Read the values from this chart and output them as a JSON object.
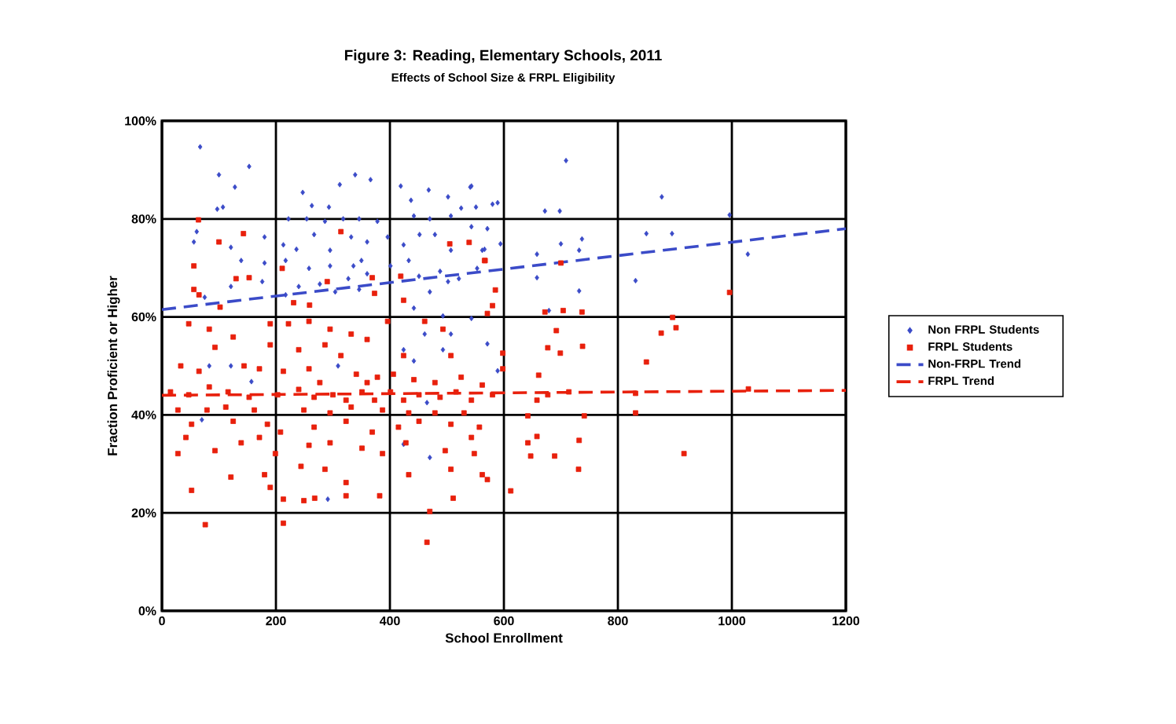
{
  "chart_data": {
    "type": "scatter",
    "title": "Figure 3: Reading, Elementary Schools, 2011",
    "subtitle": "Effects of School Size & FRPL Eligibility",
    "xlabel": "School Enrollment",
    "ylabel": "Fraction Proficient or Higher",
    "xlim": [
      0,
      1200
    ],
    "ylim": [
      0,
      100
    ],
    "xticks": [
      0,
      200,
      400,
      600,
      800,
      1000,
      1200
    ],
    "yticks": [
      {
        "value": 0,
        "label": "0%"
      },
      {
        "value": 20,
        "label": "20%"
      },
      {
        "value": 40,
        "label": "40%"
      },
      {
        "value": 60,
        "label": "60%"
      },
      {
        "value": 80,
        "label": "80%"
      },
      {
        "value": 100,
        "label": "100%"
      }
    ],
    "grid": true,
    "legend": "right",
    "series": [
      {
        "name": "Non FRPL Students",
        "marker": "diamond",
        "color": "#3b4bc8",
        "x": [
          67,
          100,
          128,
          153,
          97,
          107,
          247,
          263,
          293,
          312,
          339,
          366,
          419,
          437,
          468,
          502,
          541,
          525,
          551,
          580,
          222,
          254,
          286,
          318,
          346,
          378,
          442,
          470,
          507,
          543,
          571,
          61,
          56,
          121,
          180,
          213,
          236,
          267,
          295,
          332,
          360,
          396,
          424,
          452,
          479,
          507,
          562,
          139,
          180,
          217,
          258,
          295,
          336,
          350,
          360,
          327,
          401,
          433,
          451,
          488,
          521,
          553,
          176,
          240,
          277,
          304,
          346,
          470,
          502,
          75,
          121,
          217,
          442,
          493,
          543,
          461,
          507,
          424,
          493,
          83,
          121,
          157,
          309,
          442,
          465,
          70,
          424,
          470,
          291,
          543,
          589,
          709,
          672,
          698,
          877,
          996,
          566,
          594,
          700,
          737,
          850,
          895,
          658,
          732,
          1028,
          658,
          831,
          732,
          679,
          571,
          589
        ],
        "values": [
          94.7,
          89,
          86.5,
          90.7,
          82,
          82.4,
          85.4,
          82.7,
          82.4,
          87,
          89,
          88,
          86.7,
          83.8,
          85.9,
          84.5,
          86.5,
          82.2,
          82.4,
          83,
          80,
          80,
          79.5,
          80,
          80,
          79.5,
          80.6,
          80,
          80.6,
          78.4,
          78,
          77.4,
          75.3,
          74.2,
          76.3,
          74.7,
          73.8,
          76.8,
          73.6,
          76.3,
          75.3,
          76.3,
          74.7,
          76.8,
          76.8,
          73.6,
          73.6,
          71.5,
          71,
          71.5,
          69.9,
          70.4,
          70.4,
          71.5,
          68.8,
          67.8,
          70.4,
          71.5,
          68.3,
          69.3,
          67.8,
          69.9,
          67.2,
          66.2,
          66.7,
          65.1,
          65.6,
          65.1,
          67.2,
          64,
          66.2,
          64.5,
          61.8,
          60.2,
          59.7,
          56.5,
          56.5,
          53.3,
          53.3,
          50,
          50,
          46.8,
          50,
          51,
          42.5,
          39,
          34,
          31.3,
          22.8,
          86.7,
          83.3,
          91.9,
          81.6,
          81.6,
          84.5,
          80.8,
          73.8,
          74.9,
          74.9,
          75.9,
          77,
          77,
          72.8,
          73.6,
          72.8,
          68,
          67.4,
          65.3,
          61.3,
          54.5,
          49
        ]
      },
      {
        "name": "FRPL Students",
        "marker": "square",
        "color": "#e8200c",
        "x": [
          64,
          143,
          100,
          56,
          56,
          65,
          130,
          153,
          102,
          211,
          314,
          290,
          369,
          419,
          505,
          539,
          567,
          424,
          373,
          231,
          259,
          47,
          83,
          125,
          190,
          222,
          258,
          295,
          332,
          360,
          396,
          461,
          493,
          571,
          93,
          190,
          240,
          286,
          314,
          424,
          507,
          33,
          65,
          144,
          171,
          213,
          258,
          277,
          341,
          360,
          378,
          406,
          442,
          479,
          525,
          562,
          15,
          47,
          83,
          116,
          153,
          203,
          240,
          267,
          300,
          323,
          351,
          373,
          401,
          424,
          451,
          488,
          516,
          543,
          580,
          28,
          79,
          112,
          162,
          249,
          295,
          332,
          387,
          433,
          479,
          530,
          52,
          125,
          185,
          208,
          267,
          323,
          369,
          415,
          451,
          507,
          557,
          42,
          93,
          139,
          171,
          199,
          258,
          295,
          351,
          387,
          428,
          497,
          548,
          28,
          121,
          180,
          244,
          286,
          323,
          382,
          433,
          507,
          562,
          52,
          190,
          213,
          249,
          268,
          323,
          470,
          511,
          213,
          76,
          465,
          571,
          543,
          700,
          996,
          704,
          672,
          737,
          896,
          876,
          902,
          692,
          677,
          699,
          738,
          850,
          661,
          677,
          658,
          714,
          831,
          1029,
          642,
          741,
          831,
          658,
          642,
          732,
          689,
          647,
          731,
          916,
          612,
          598,
          598,
          580,
          585,
          566
        ],
        "values": [
          79.8,
          77,
          75.3,
          70.4,
          65.6,
          64.5,
          67.8,
          68,
          62,
          69.9,
          77.4,
          67.2,
          68,
          68.3,
          74.9,
          75.2,
          71.5,
          63.4,
          64.8,
          62.9,
          62.4,
          58.6,
          57.5,
          55.9,
          58.6,
          58.6,
          59.1,
          57.5,
          56.5,
          55.4,
          59.1,
          59.1,
          57.5,
          60.7,
          53.8,
          54.3,
          53.3,
          54.3,
          52.1,
          52.1,
          52.1,
          50,
          48.9,
          50,
          49.4,
          48.9,
          49.4,
          46.6,
          48.3,
          46.6,
          47.7,
          48.3,
          47.2,
          46.6,
          47.7,
          46.1,
          44.7,
          44.1,
          45.7,
          44.7,
          43.6,
          44.1,
          45.2,
          43.6,
          44.1,
          43,
          44.7,
          43,
          44.7,
          43,
          44.1,
          43.6,
          44.7,
          43,
          44.1,
          41,
          41,
          41.6,
          41,
          41,
          40.4,
          41.6,
          41,
          40.4,
          40.4,
          40.4,
          38.1,
          38.7,
          38.1,
          36.5,
          37.5,
          38.7,
          36.5,
          37.5,
          38.7,
          38.1,
          37.5,
          35.4,
          32.7,
          34.3,
          35.4,
          32.1,
          33.8,
          34.3,
          33.2,
          32.1,
          34.3,
          32.7,
          32.1,
          32.1,
          27.3,
          27.8,
          29.5,
          28.9,
          26.2,
          23.5,
          27.8,
          28.9,
          27.8,
          24.6,
          25.2,
          22.8,
          22.5,
          23,
          23.5,
          20.3,
          23,
          17.9,
          17.6,
          14,
          26.8,
          35.4,
          71,
          65,
          61.3,
          61,
          61,
          59.9,
          56.7,
          57.8,
          57.2,
          53.7,
          52.6,
          54,
          50.8,
          48.1,
          44.1,
          43,
          44.7,
          44.4,
          45.3,
          39.8,
          39.8,
          40.4,
          35.6,
          34.3,
          34.8,
          31.6,
          31.6,
          28.9,
          32.1,
          24.5,
          52.6,
          49.4,
          62.3,
          65.5,
          71.5
        ]
      },
      {
        "name": "Non-FRPL Trend",
        "type": "line",
        "line_style": "dashed",
        "color": "#3b4bc8",
        "x": [
          0,
          1200
        ],
        "values": [
          61.5,
          78
        ]
      },
      {
        "name": "FRPL Trend",
        "type": "line",
        "line_style": "dashed",
        "color": "#e8200c",
        "x": [
          0,
          1200
        ],
        "values": [
          44,
          45
        ]
      }
    ]
  }
}
